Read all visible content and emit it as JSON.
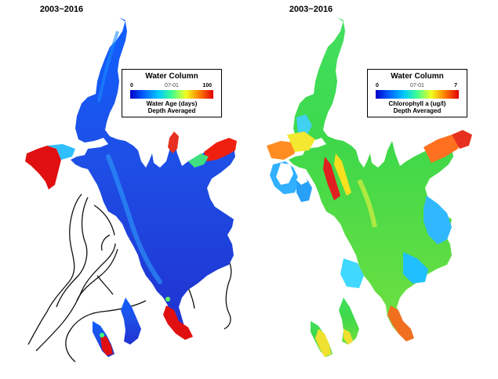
{
  "left_map": {
    "title": "2003~2016",
    "legend": {
      "title": "Water Column",
      "min_label": "0",
      "max_label": "100",
      "date_label": "07-01",
      "variable_label": "Water Age (days)",
      "subtitle": "Depth Averaged"
    },
    "colormap": [
      "#0000c8",
      "#0064ff",
      "#00c8ff",
      "#40ff90",
      "#f0ff20",
      "#ff8000",
      "#e00000"
    ],
    "fill_color": "#1a52e0"
  },
  "right_map": {
    "title": "2003~2016",
    "legend": {
      "title": "Water Column",
      "min_label": "0",
      "max_label": "7",
      "date_label": "07-01",
      "variable_label": "Chlorophyll a (ug/l)",
      "subtitle": "Depth Averaged"
    },
    "colormap": [
      "#0000c8",
      "#0064ff",
      "#00c8ff",
      "#40ff90",
      "#f0ff20",
      "#ff8000",
      "#e00000"
    ],
    "fill_color": "#3ed84a"
  }
}
